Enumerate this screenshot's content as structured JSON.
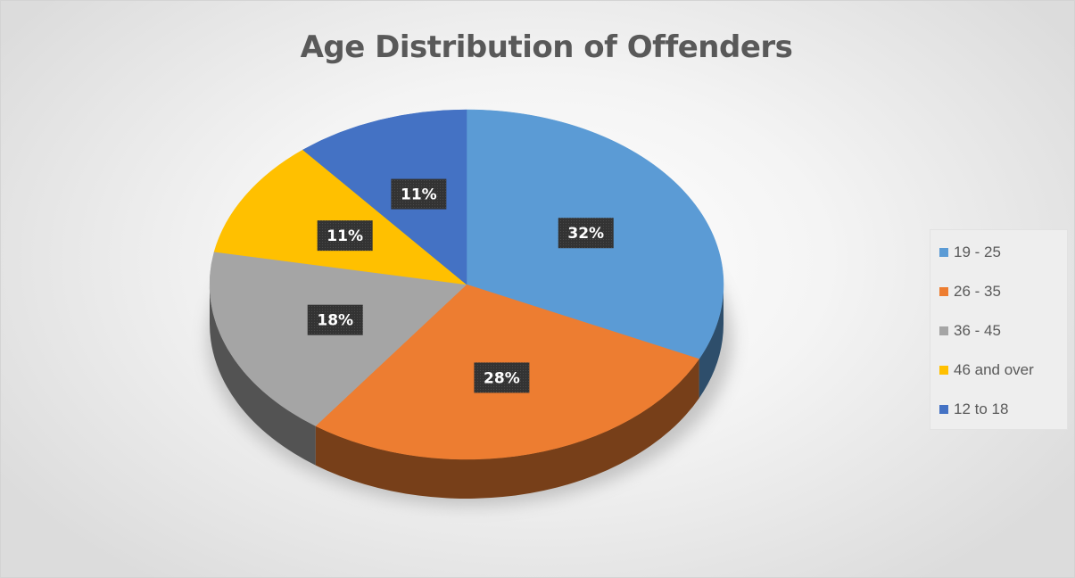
{
  "chart_data": {
    "type": "pie",
    "title": "Age Distribution of Offenders",
    "legend_position": "right",
    "slices": [
      {
        "label": "19 - 25",
        "value": 32,
        "display": "32%",
        "color": "#5b9bd5"
      },
      {
        "label": "26 - 35",
        "value": 28,
        "display": "28%",
        "color": "#ed7d31"
      },
      {
        "label": "36 - 45",
        "value": 18,
        "display": "18%",
        "color": "#a5a5a5"
      },
      {
        "label": "46 and over",
        "value": 11,
        "display": "11%",
        "color": "#ffc000"
      },
      {
        "label": "12 to 18",
        "value": 11,
        "display": "11%",
        "color": "#4472c4"
      }
    ]
  }
}
